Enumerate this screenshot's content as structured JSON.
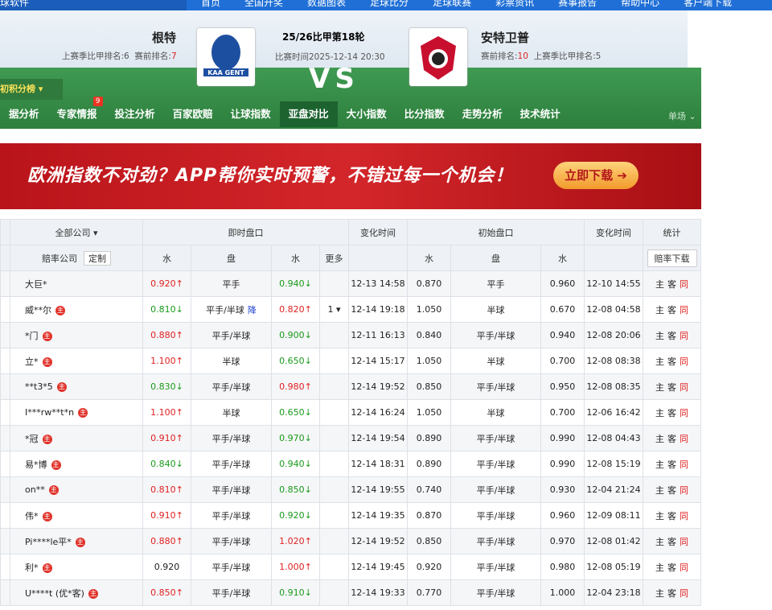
{
  "nav": {
    "brand": "球软件",
    "items": [
      "首页",
      "全国开奖",
      "数据图表",
      "足球比分",
      "足球联赛",
      "彩票资讯",
      "赛事报告",
      "帮助中心",
      "客户端下载"
    ]
  },
  "match": {
    "home": {
      "name": "根特",
      "last_rank_label": "上赛季比甲排名:",
      "last_rank": "6",
      "pre_rank_label": "赛前排名:",
      "pre_rank": "7",
      "logo": "KAA GENT"
    },
    "round": "25/26比甲第18轮",
    "time": "比赛时间2025-12-14 20:30",
    "vs": "VS",
    "away": {
      "name": "安特卫普",
      "pre_rank_label": "赛前排名:",
      "pre_rank": "10",
      "last_rank_label": "上赛季比甲排名:",
      "last_rank": "5"
    }
  },
  "standings_toggle": "初积分榜",
  "tabs": [
    "据分析",
    "专家情报",
    "投注分析",
    "百家欧赔",
    "让球指数",
    "亚盘对比",
    "大小指数",
    "比分指数",
    "走势分析",
    "技术统计"
  ],
  "active_tab": 5,
  "tab_badge": {
    "index": 1,
    "text": "9"
  },
  "single": "单场",
  "banner": {
    "text": "欧洲指数不对劲？APP帮你实时预警，不错过每一个机会！",
    "button": "立即下载"
  },
  "table": {
    "head1": [
      "全部公司",
      "即时盘口",
      "变化时间",
      "初始盘口",
      "变化时间",
      "统计"
    ],
    "head2": {
      "company": "赔率公司",
      "custom": "定制",
      "live": [
        "水",
        "盘",
        "水",
        "更多"
      ],
      "init": [
        "水",
        "盘",
        "水"
      ],
      "download": "赔率下载"
    },
    "badge_text": "主",
    "stat_labels": [
      "主",
      "客",
      "同"
    ],
    "rows": [
      {
        "company": "大巨*",
        "badge": false,
        "live": [
          "0.920↑",
          "平手",
          "0.940↓"
        ],
        "time": "12-13 14:58",
        "init": [
          "0.870",
          "平手",
          "0.960"
        ],
        "init_time": "12-10 14:55"
      },
      {
        "company": "威**尔",
        "badge": true,
        "live": [
          "0.810↓",
          "平手/半球",
          "0.820↑"
        ],
        "note": "降",
        "more": "1",
        "time": "12-14 19:18",
        "init": [
          "1.050",
          "半球",
          "0.670"
        ],
        "init_time": "12-08 04:58"
      },
      {
        "company": "*门",
        "badge": true,
        "live": [
          "0.880↑",
          "平手/半球",
          "0.900↓"
        ],
        "time": "12-11 16:13",
        "init": [
          "0.840",
          "平手/半球",
          "0.940"
        ],
        "init_time": "12-08 20:06"
      },
      {
        "company": "立*",
        "badge": true,
        "live": [
          "1.100↑",
          "半球",
          "0.650↓"
        ],
        "time": "12-14 15:17",
        "init": [
          "1.050",
          "半球",
          "0.700"
        ],
        "init_time": "12-08 08:38"
      },
      {
        "company": "**t3*5",
        "badge": true,
        "live": [
          "0.830↓",
          "平手/半球",
          "0.980↑"
        ],
        "time": "12-14 19:52",
        "init": [
          "0.850",
          "平手/半球",
          "0.950"
        ],
        "init_time": "12-08 08:35"
      },
      {
        "company": "I***rw**t*n",
        "badge": true,
        "live": [
          "1.100↑",
          "半球",
          "0.650↓"
        ],
        "time": "12-14 16:24",
        "init": [
          "1.050",
          "半球",
          "0.700"
        ],
        "init_time": "12-06 16:42"
      },
      {
        "company": "*冠",
        "badge": true,
        "live": [
          "0.910↑",
          "平手/半球",
          "0.970↓"
        ],
        "time": "12-14 19:54",
        "init": [
          "0.890",
          "平手/半球",
          "0.990"
        ],
        "init_time": "12-08 04:43"
      },
      {
        "company": "易*博",
        "badge": true,
        "live": [
          "0.840↓",
          "平手/半球",
          "0.940↓"
        ],
        "time": "12-14 18:31",
        "init": [
          "0.890",
          "平手/半球",
          "0.990"
        ],
        "init_time": "12-08 15:19"
      },
      {
        "company": "on**",
        "badge": true,
        "live": [
          "0.810↑",
          "平手/半球",
          "0.850↓"
        ],
        "time": "12-14 19:55",
        "init": [
          "0.740",
          "平手/半球",
          "0.930"
        ],
        "init_time": "12-04 21:24"
      },
      {
        "company": "伟*",
        "badge": true,
        "live": [
          "0.910↑",
          "平手/半球",
          "0.920↓"
        ],
        "time": "12-14 19:35",
        "init": [
          "0.870",
          "平手/半球",
          "0.960"
        ],
        "init_time": "12-09 08:11"
      },
      {
        "company": "Pi****le平*",
        "badge": true,
        "live": [
          "0.880↑",
          "平手/半球",
          "1.020↑"
        ],
        "time": "12-14 19:52",
        "init": [
          "0.850",
          "平手/半球",
          "0.970"
        ],
        "init_time": "12-08 01:42"
      },
      {
        "company": "利*",
        "badge": true,
        "live": [
          "0.920",
          "平手/半球",
          "1.000↑"
        ],
        "time": "12-14 19:45",
        "init": [
          "0.920",
          "平手/半球",
          "0.980"
        ],
        "init_time": "12-08 05:19"
      },
      {
        "company": "U****t (优*客)",
        "badge": true,
        "live": [
          "0.850↑",
          "平手/半球",
          "0.910↓"
        ],
        "time": "12-14 19:33",
        "init": [
          "0.770",
          "平手/半球",
          "1.000"
        ],
        "init_time": "12-04 23:18"
      }
    ]
  }
}
